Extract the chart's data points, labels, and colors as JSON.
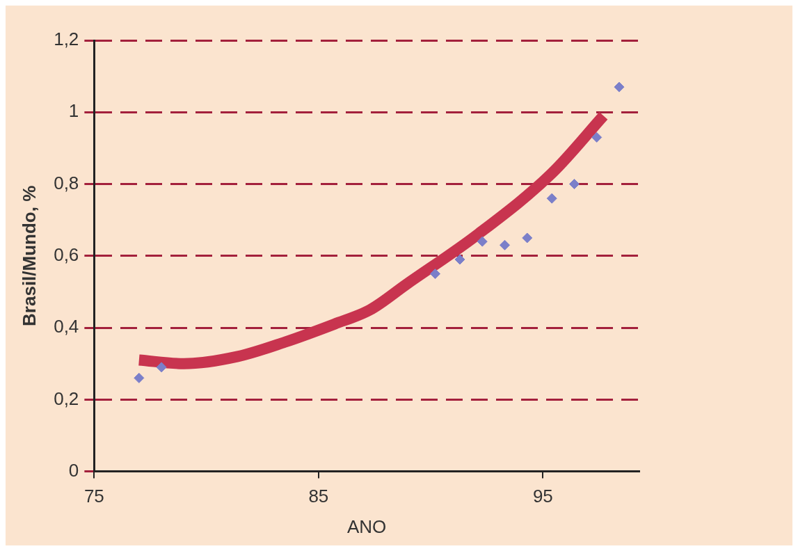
{
  "chart_data": {
    "type": "scatter",
    "xlabel": "ANO",
    "ylabel": "Brasil/Mundo, %",
    "series": [
      {
        "type": "line",
        "color": "#c8344f",
        "marker": "none",
        "line_style": "solid",
        "x": [
          77,
          79,
          81.4,
          83.5,
          85.7,
          87.3,
          88.9,
          92.1,
          95.4,
          97.7
        ],
        "values": [
          0.31,
          0.3,
          0.32,
          0.36,
          0.41,
          0.45,
          0.52,
          0.66,
          0.83,
          0.99
        ]
      },
      {
        "color": "#7b7fc9",
        "marker": "diamond",
        "x": [
          77,
          78,
          90.2,
          91.3,
          92.3,
          93.3,
          94.3,
          95.4,
          96.4,
          97.4,
          98.4
        ],
        "values": [
          0.26,
          0.29,
          0.55,
          0.59,
          0.64,
          0.63,
          0.65,
          0.76,
          0.8,
          0.93,
          1.07
        ]
      }
    ],
    "xlim": [
      75,
      99.3
    ],
    "xticks": [
      75,
      85,
      95
    ],
    "ylim": [
      0,
      1.2
    ],
    "yticks": [
      0,
      {
        "value": 0.2,
        "label": "0,2"
      },
      {
        "value": 0.4,
        "label": "0,4"
      },
      {
        "value": 0.6,
        "label": "0,6"
      },
      {
        "value": 0.8,
        "label": "0,8"
      },
      1,
      {
        "value": 1.2,
        "label": "1,2"
      }
    ],
    "grid": "y",
    "line_style": "dashed",
    "legend": false
  }
}
